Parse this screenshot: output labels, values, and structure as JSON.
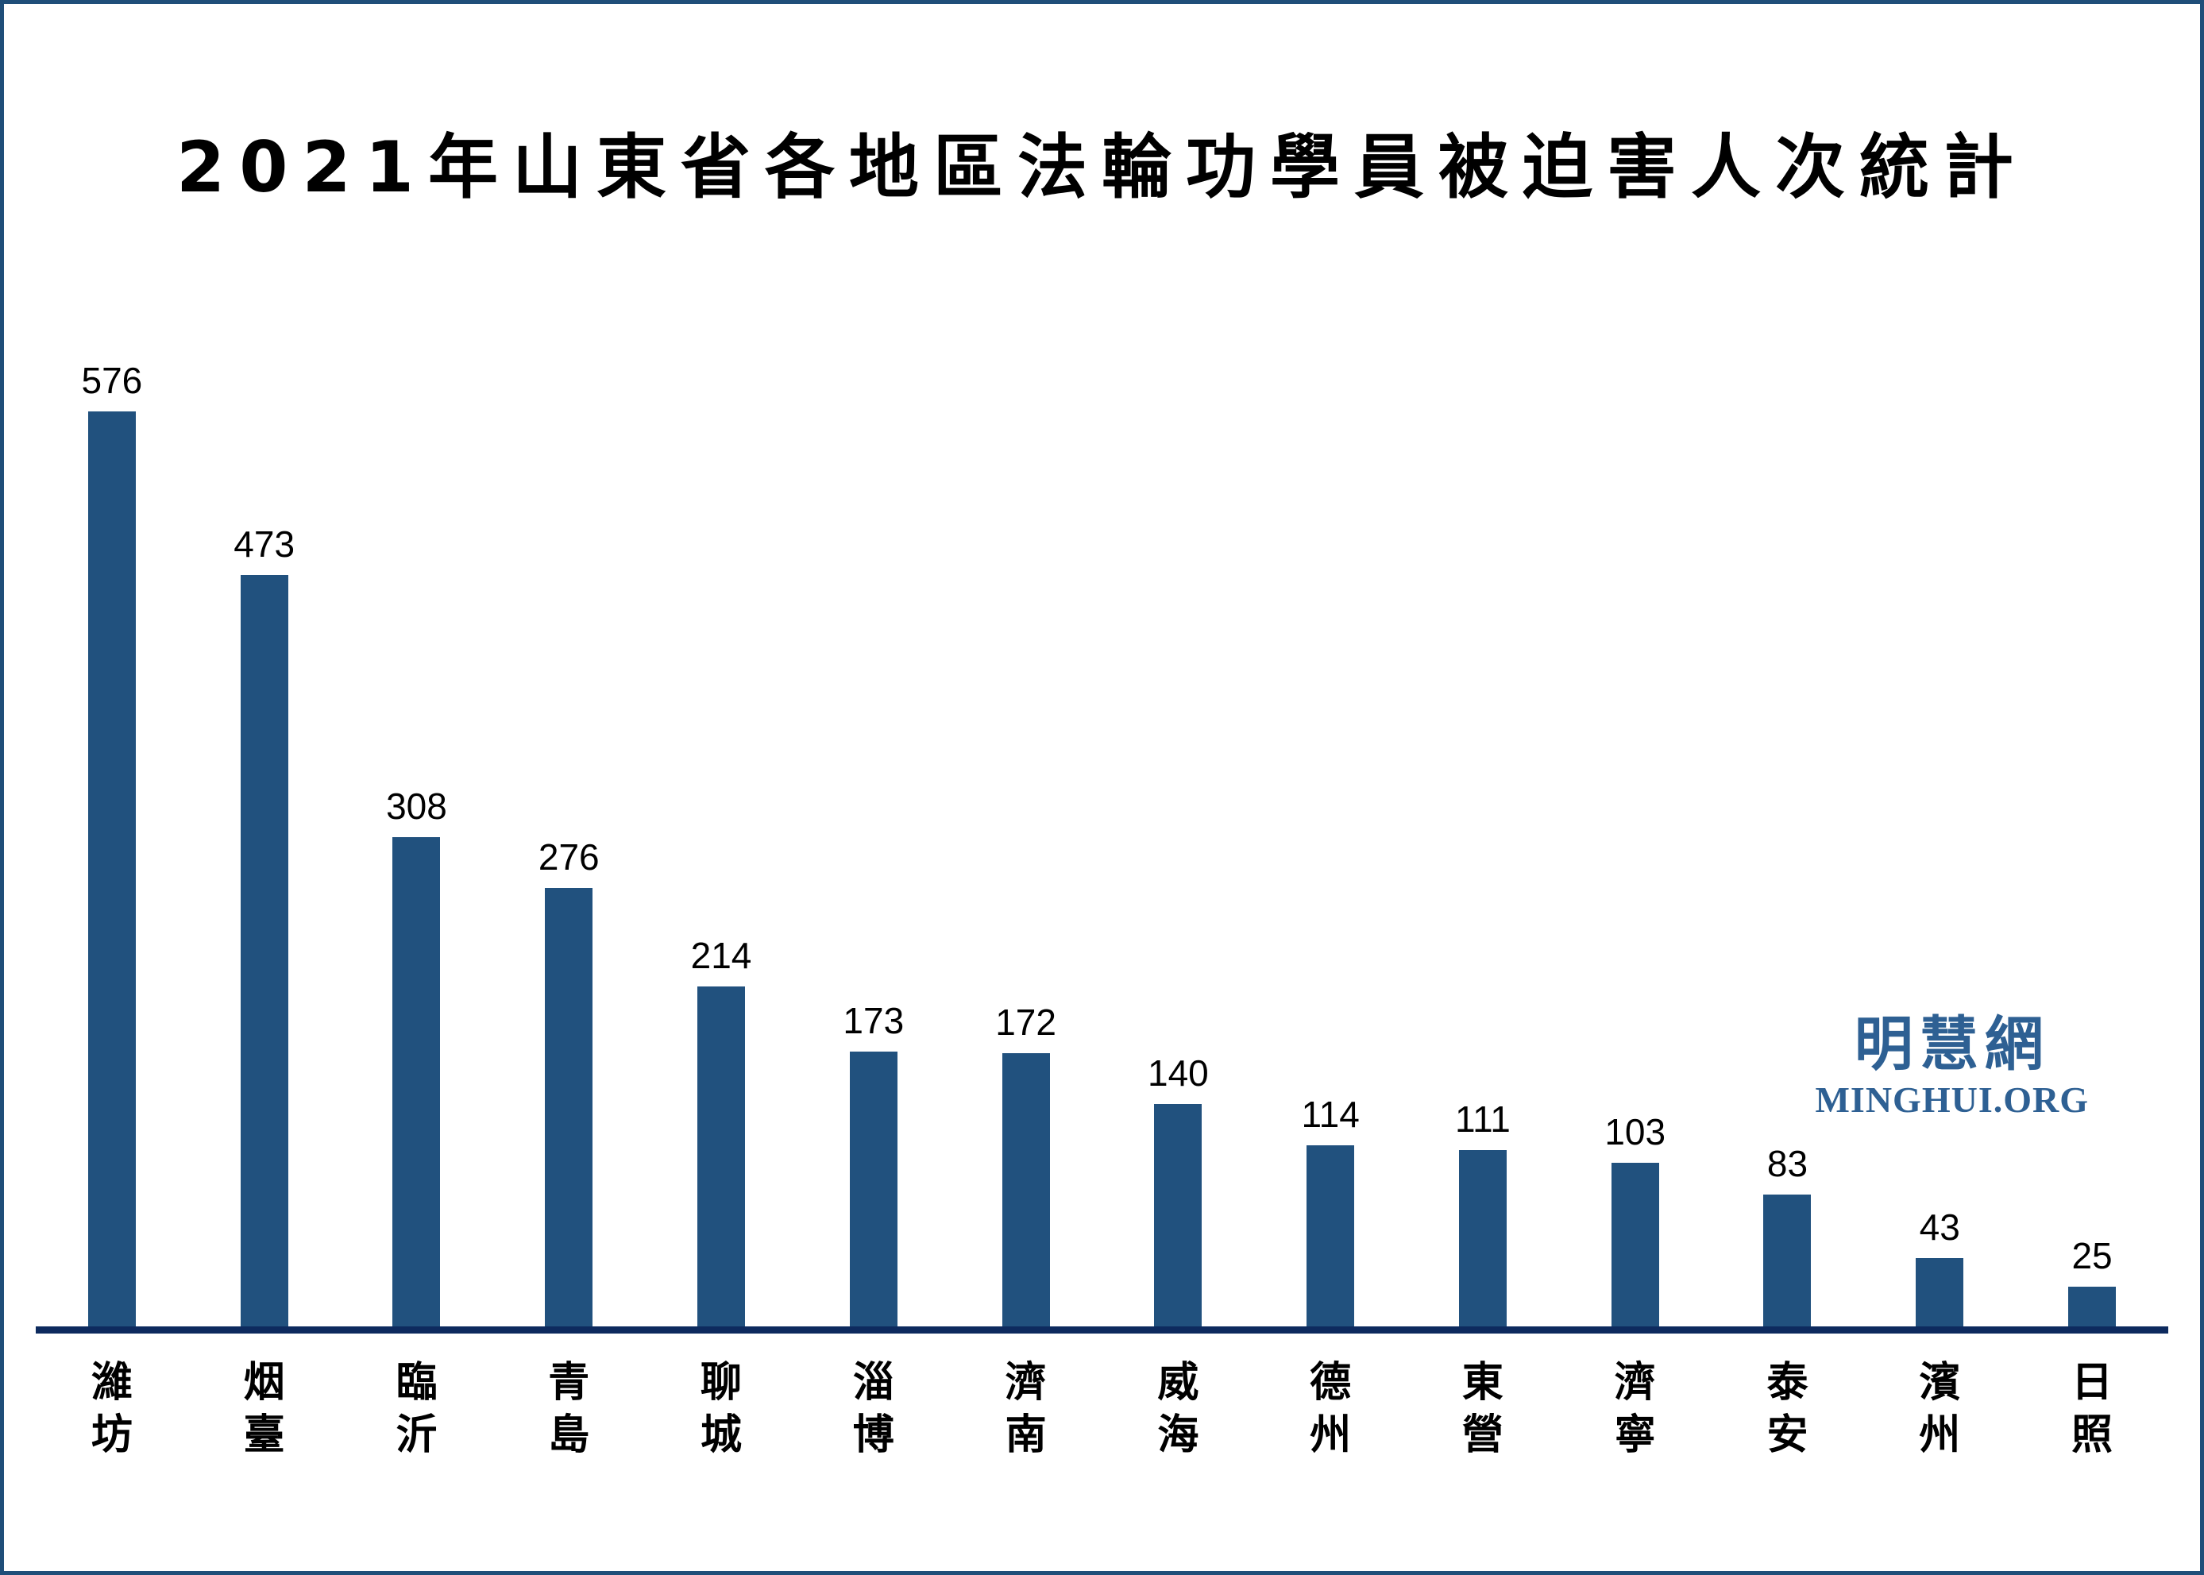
{
  "page": {
    "background": "#FFFFFF",
    "frame_border_color": "#1F4E79"
  },
  "logo": {
    "chinese": "明慧網",
    "latin": "MINGHUI.ORG",
    "color": "#2E6093"
  },
  "colors": {
    "bar": "#21517E",
    "axis_line": "#0D2A5E",
    "frame": "#1F4E79",
    "logo": "#2E6093",
    "text": "#000000",
    "background": "#FFFFFF"
  },
  "chart_data": {
    "type": "bar",
    "title": "2021年山東省各地區法輪功學員被迫害人次統計",
    "categories": [
      "濰坊",
      "烟臺",
      "臨沂",
      "青島",
      "聊城",
      "淄博",
      "濟南",
      "威海",
      "德州",
      "東營",
      "濟寧",
      "泰安",
      "濱州",
      "日照"
    ],
    "values": [
      576,
      473,
      308,
      276,
      214,
      173,
      172,
      140,
      114,
      111,
      103,
      83,
      43,
      25
    ],
    "xlabel": "",
    "ylabel": "",
    "ylim": [
      0,
      600
    ],
    "grid": false,
    "legend": null,
    "bar_value_labels_shown": true,
    "category_label_orientation": "vertical-stacked"
  }
}
